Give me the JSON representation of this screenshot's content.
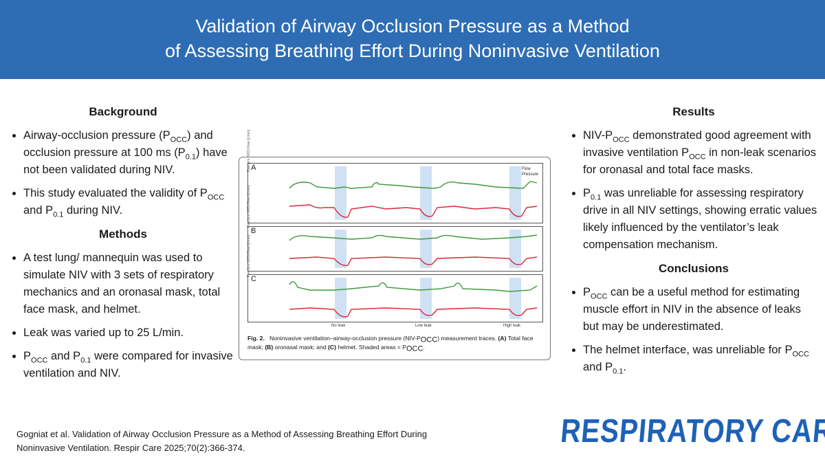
{
  "header": {
    "title_line1": "Validation of Airway Occlusion Pressure as a Method",
    "title_line2": "of Assessing Breathing Effort During Noninvasive Ventilation"
  },
  "background": {
    "title": "Background",
    "bullets": [
      [
        "Airway-occlusion pressure (P",
        "OCC",
        ") and occlusion pressure at 100 ms (P",
        "0.1",
        ") have not been validated during NIV."
      ],
      [
        "This study evaluated the validity of P",
        "OCC",
        " and P",
        "0.1",
        " during NIV."
      ]
    ]
  },
  "methods": {
    "title": "Methods",
    "bullets": [
      "A test lung/ mannequin was used to simulate NIV with 3 sets of respiratory mechanics and an oronasal mask, total face mask, and helmet.",
      "Leak was varied up to 25 L/min."
    ],
    "bullet3": [
      "P",
      "OCC",
      " and P",
      "0.1",
      " were compared for invasive ventilation and NIV."
    ]
  },
  "results": {
    "title": "Results",
    "bullet1": [
      "NIV-P",
      "OCC",
      " demonstrated good agreement with invasive ventilation P",
      "OCC",
      " in non-leak scenarios for oronasal and total face masks."
    ],
    "bullet2": [
      "P",
      "0.1",
      " was unreliable for assessing respiratory drive in all NIV settings, showing erratic values likely influenced by the ventilator’s leak compensation mechanism."
    ]
  },
  "conclusions": {
    "title": "Conclusions",
    "bullet1": [
      "P",
      "OCC",
      " can be a useful method for estimating muscle effort in NIV in the absence of leaks but may be underestimated."
    ],
    "bullet2": [
      "The helmet interface, was unreliable for P",
      "OCC",
      "  and P",
      "0.1",
      "."
    ]
  },
  "figure": {
    "panels": [
      "A",
      "B",
      "C"
    ],
    "legend": [
      "Flow",
      "Pressure"
    ],
    "axis_label": "Paw (cm H2O)   Flow (L/min)",
    "leak_labels": [
      "No leak",
      "Low leak",
      "High leak"
    ],
    "caption_label": "Fig. 2.",
    "caption_text1": "Noninvasive ventilation–airway-occlusion pressure (NIV-P",
    "caption_sub": "OCC",
    "caption_text2": ") measurement traces. ",
    "caption_a": "(A)",
    "caption_t3": " Total face mask; ",
    "caption_b": "(B)",
    "caption_t4": " oronasal mask; and ",
    "caption_c": "(C)",
    "caption_t5": " helmet. Shaded areas = P",
    "caption_end": "."
  },
  "citation": "Gogniat et al. Validation of Airway Occlusion Pressure as a Method of Assessing Breathing Effort During Noninvasive Ventilation. Respir Care 2025;70(2):366-374.",
  "logo": "RESPIRATORY CARE",
  "colors": {
    "header": "#2e6db4",
    "flow": "#3a9a3a",
    "pressure": "#d9263a",
    "shade": "#cfe1f3",
    "logo": "#1e62b7"
  }
}
